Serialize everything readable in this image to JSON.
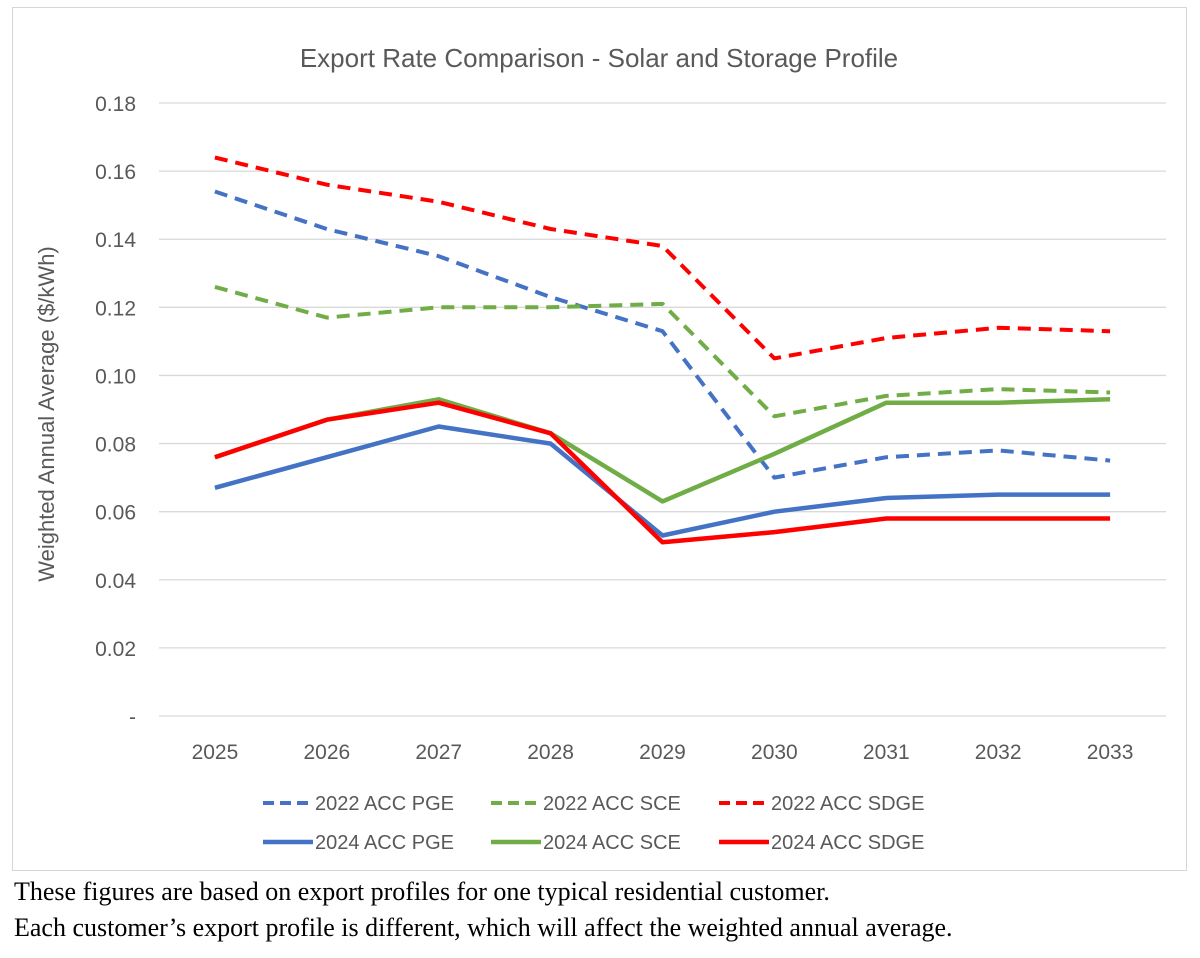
{
  "chart_data": {
    "type": "line",
    "title": "Export Rate Comparison - Solar and Storage Profile",
    "xlabel": "",
    "ylabel": "Weighted Annual Average ($/kWh)",
    "categories": [
      "2025",
      "2026",
      "2027",
      "2028",
      "2029",
      "2030",
      "2031",
      "2032",
      "2033"
    ],
    "ylim": [
      0,
      0.18
    ],
    "yticks": [
      {
        "value": 0,
        "label": "-"
      },
      {
        "value": 0.02,
        "label": "0.02"
      },
      {
        "value": 0.04,
        "label": "0.04"
      },
      {
        "value": 0.06,
        "label": "0.06"
      },
      {
        "value": 0.08,
        "label": "0.08"
      },
      {
        "value": 0.1,
        "label": "0.10"
      },
      {
        "value": 0.12,
        "label": "0.12"
      },
      {
        "value": 0.14,
        "label": "0.14"
      },
      {
        "value": 0.16,
        "label": "0.16"
      },
      {
        "value": 0.18,
        "label": "0.18"
      }
    ],
    "grid": true,
    "legend_position": "bottom",
    "series": [
      {
        "name": "2022 ACC PGE",
        "color": "#4472C4",
        "style": "dashed",
        "values": [
          0.154,
          0.143,
          0.135,
          0.123,
          0.113,
          0.07,
          0.076,
          0.078,
          0.075
        ]
      },
      {
        "name": "2022 ACC SCE",
        "color": "#70AD47",
        "style": "dashed",
        "values": [
          0.126,
          0.117,
          0.12,
          0.12,
          0.121,
          0.088,
          0.094,
          0.096,
          0.095
        ]
      },
      {
        "name": "2022 ACC SDGE",
        "color": "#FF0000",
        "style": "dashed",
        "values": [
          0.164,
          0.156,
          0.151,
          0.143,
          0.138,
          0.105,
          0.111,
          0.114,
          0.113
        ]
      },
      {
        "name": "2024 ACC PGE",
        "color": "#4472C4",
        "style": "solid",
        "values": [
          0.067,
          0.076,
          0.085,
          0.08,
          0.053,
          0.06,
          0.064,
          0.065,
          0.065
        ]
      },
      {
        "name": "2024 ACC SCE",
        "color": "#70AD47",
        "style": "solid",
        "values": [
          0.076,
          0.087,
          0.093,
          0.083,
          0.063,
          0.077,
          0.092,
          0.092,
          0.093
        ]
      },
      {
        "name": "2024 ACC SDGE",
        "color": "#FF0000",
        "style": "solid",
        "values": [
          0.076,
          0.087,
          0.092,
          0.083,
          0.051,
          0.054,
          0.058,
          0.058,
          0.058
        ]
      }
    ]
  },
  "captions": {
    "line1": "These figures are based on export profiles for one typical residential customer.",
    "line2": "Each customer’s export profile is different, which will affect the weighted annual average."
  }
}
